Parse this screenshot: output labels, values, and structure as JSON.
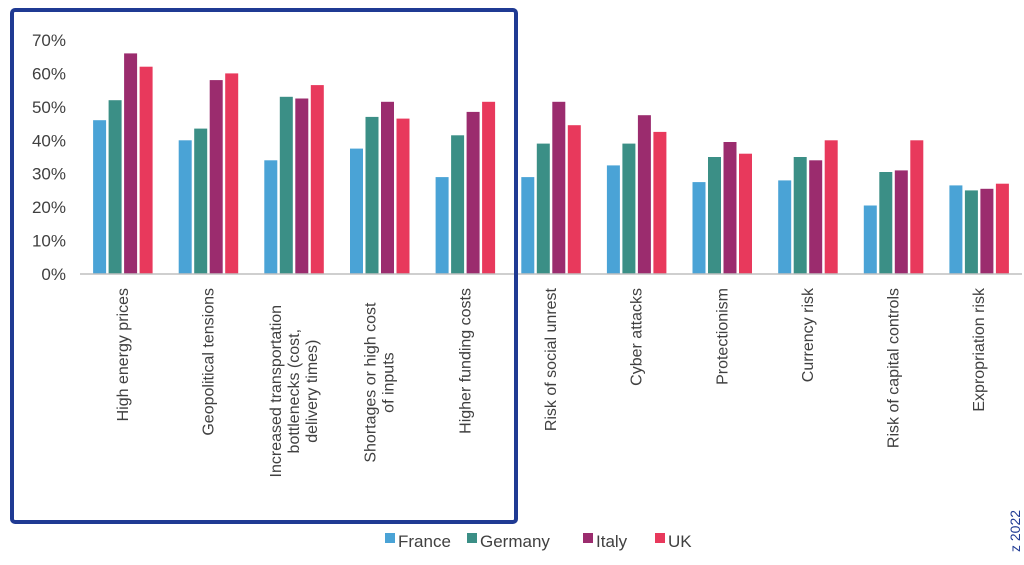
{
  "chart_data": {
    "type": "bar",
    "title": "",
    "xlabel": "",
    "ylabel": "",
    "ylim": [
      0,
      70
    ],
    "y_ticks": [
      "0%",
      "10%",
      "20%",
      "30%",
      "40%",
      "50%",
      "60%",
      "70%"
    ],
    "grid": false,
    "legend_position": "bottom",
    "categories": [
      "High energy prices",
      "Geopolitical tensions",
      "Increased transportation bottlenecks (cost, delivery times)",
      "Shortages or high cost of inputs",
      "Higher funding costs",
      "Risk of social unrest",
      "Cyber attacks",
      "Protectionism",
      "Currency risk",
      "Risk of capital controls",
      "Expropriation risk"
    ],
    "series": [
      {
        "name": "France",
        "color": "#4aa3d6",
        "values": [
          46,
          40,
          34,
          37.5,
          29,
          29,
          32.5,
          27.5,
          28,
          20.5,
          26.5
        ]
      },
      {
        "name": "Germany",
        "color": "#3b8f86",
        "values": [
          52,
          43.5,
          53,
          47,
          41.5,
          39,
          39,
          35,
          35,
          30.5,
          25
        ]
      },
      {
        "name": "Italy",
        "color": "#9b2c6e",
        "values": [
          66,
          58,
          52.5,
          51.5,
          48.5,
          51.5,
          47.5,
          39.5,
          34,
          31,
          25.5
        ]
      },
      {
        "name": "UK",
        "color": "#e8395c",
        "values": [
          62,
          60,
          56.5,
          46.5,
          51.5,
          44.5,
          42.5,
          36,
          40,
          40,
          27
        ]
      }
    ],
    "highlight_box_color": "#1f3a93",
    "highlighted_categories": 5
  },
  "side_text": "z 2022"
}
